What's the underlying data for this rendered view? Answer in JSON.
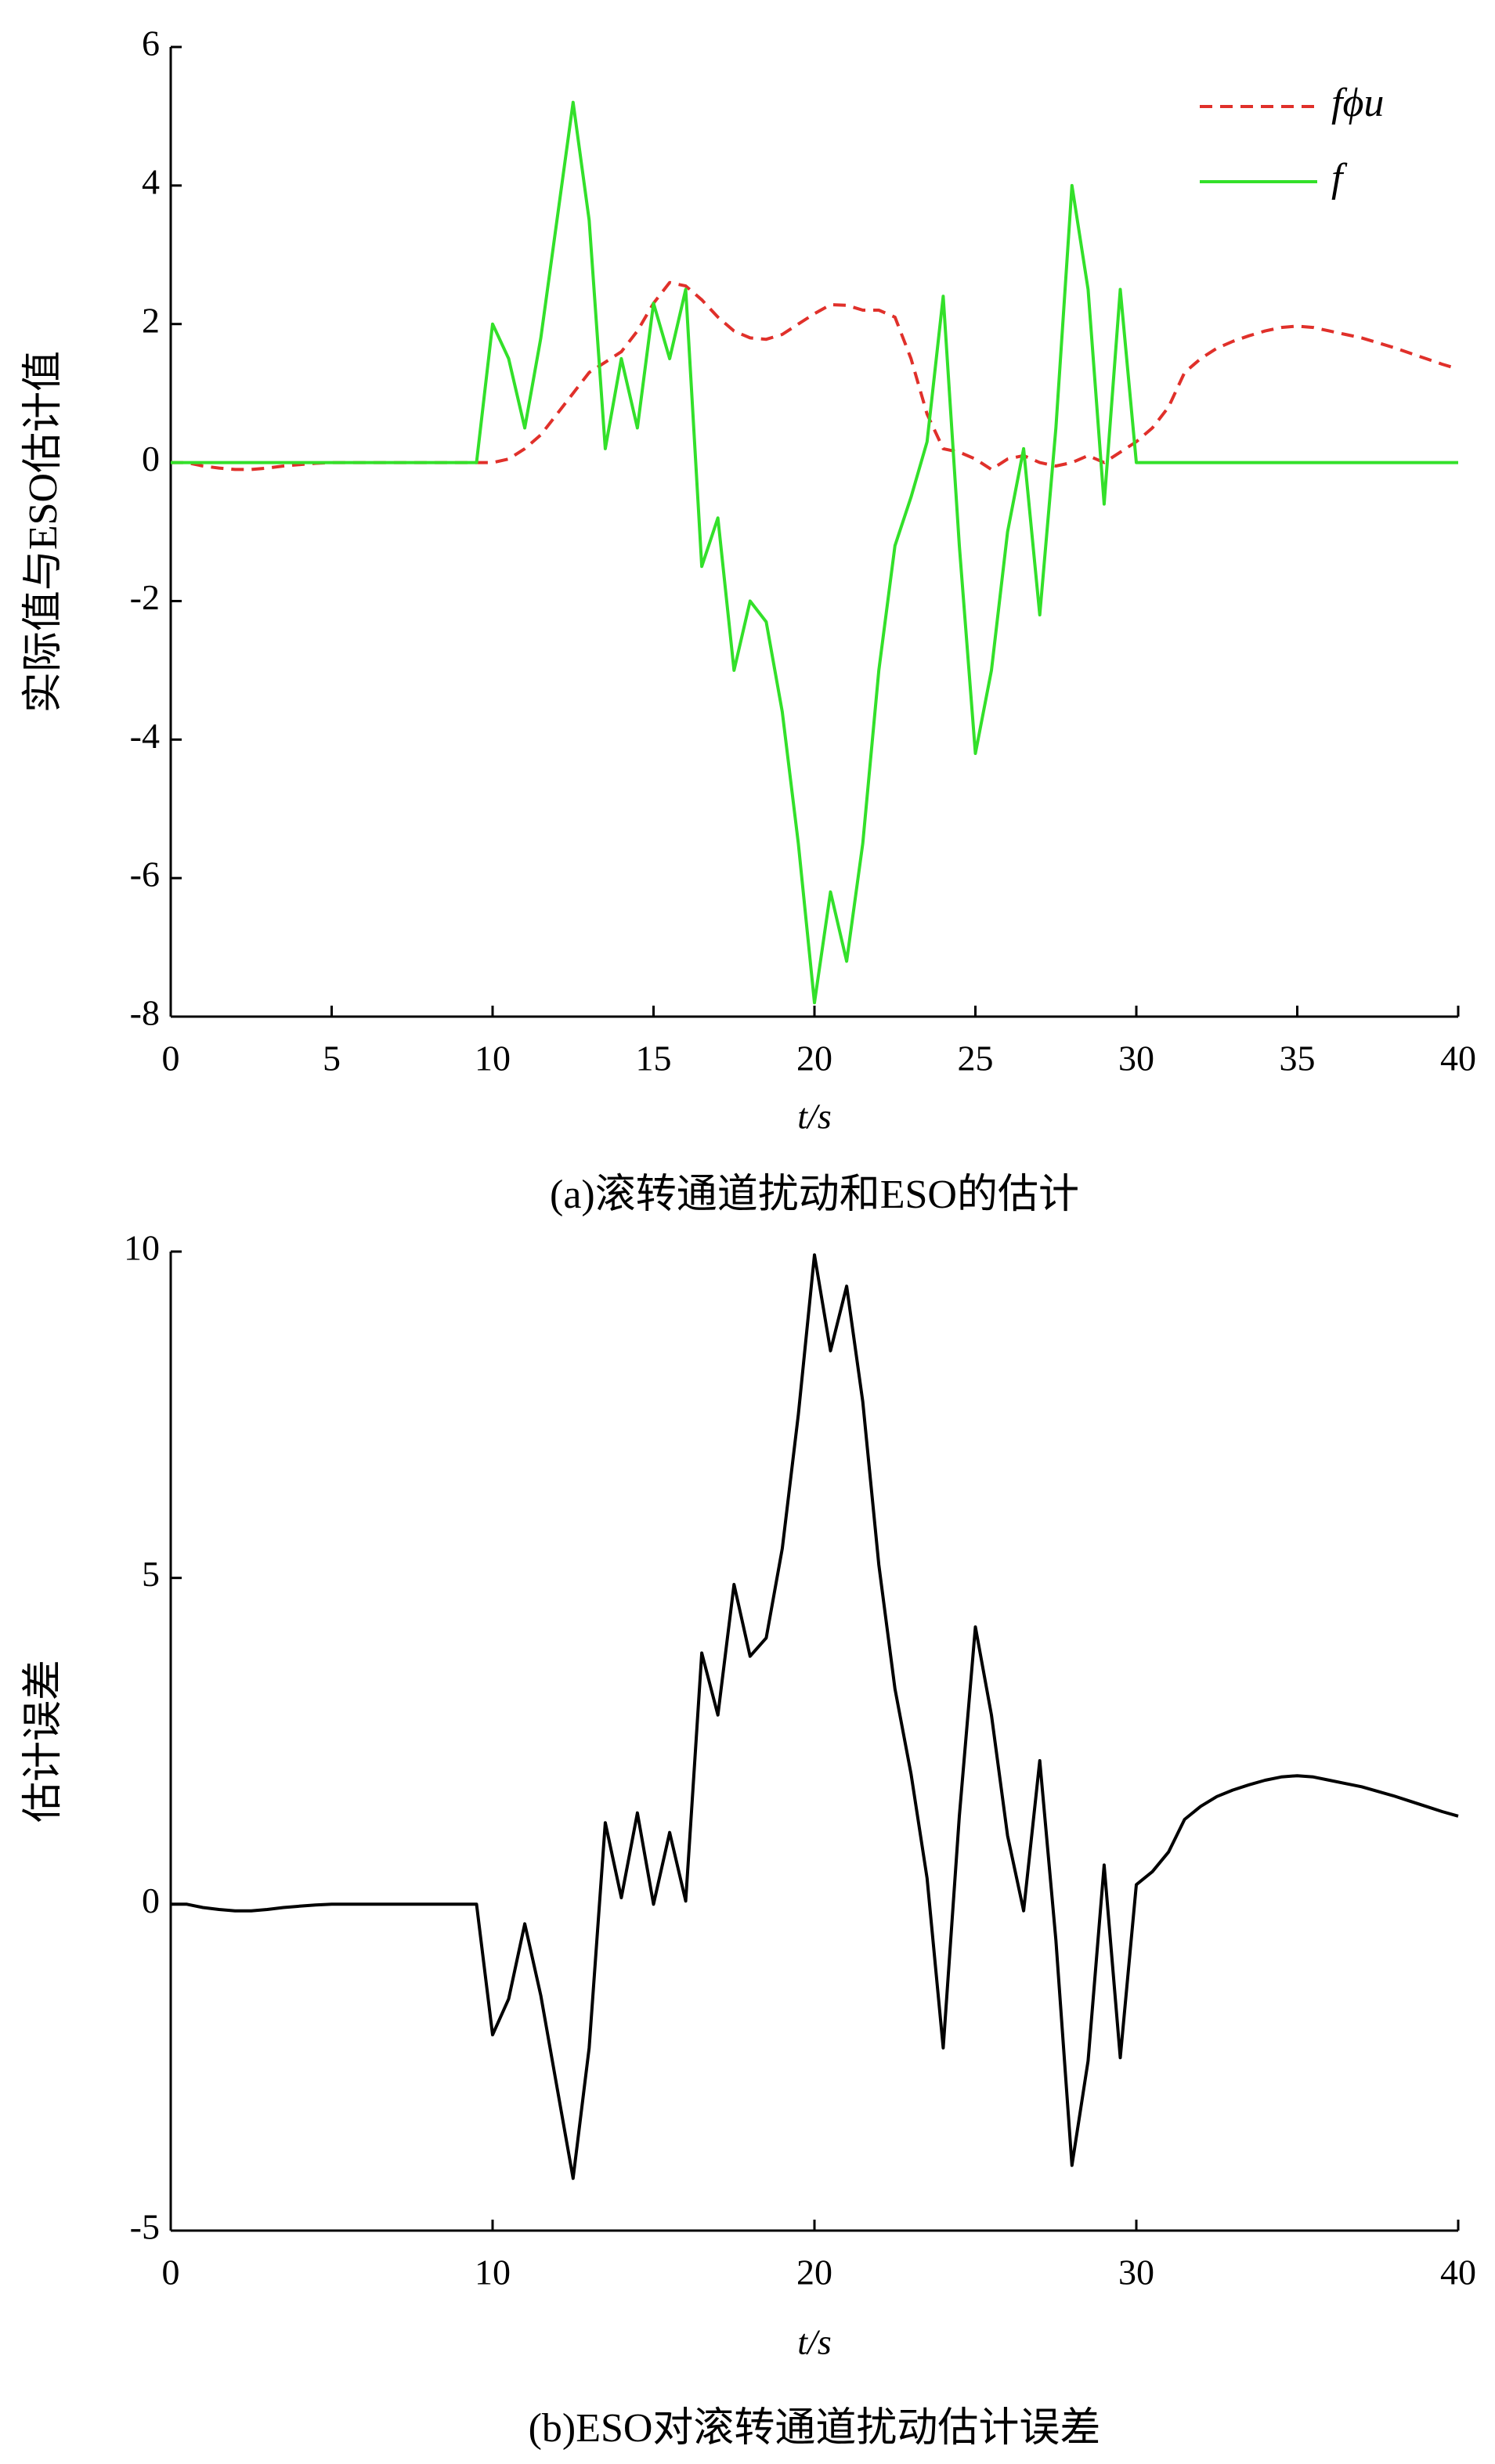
{
  "chart_data": [
    {
      "type": "line",
      "ylabel": "实际值与ESO估计值",
      "xlabel": "t/s",
      "caption": "(a)滚转通道扰动和ESO的估计",
      "xlim": [
        0,
        40
      ],
      "xticks": [
        0,
        5,
        10,
        15,
        20,
        25,
        30,
        35,
        40
      ],
      "ylim": [
        -8,
        6
      ],
      "yticks": [
        -8,
        -6,
        -4,
        -2,
        0,
        2,
        4,
        6
      ],
      "legend": "upper right",
      "x": [
        0,
        0.5,
        1,
        1.5,
        2,
        2.5,
        3,
        3.5,
        4,
        4.5,
        5,
        5.5,
        6,
        6.5,
        7,
        7.5,
        8,
        8.5,
        9,
        9.5,
        10,
        10.5,
        11,
        11.5,
        12,
        12.5,
        13,
        13.5,
        14,
        14.5,
        15,
        15.5,
        16,
        16.5,
        17,
        17.5,
        18,
        18.5,
        19,
        19.5,
        20,
        20.5,
        21,
        21.5,
        22,
        22.5,
        23,
        23.5,
        24,
        24.5,
        25,
        25.5,
        26,
        26.5,
        27,
        27.5,
        28,
        28.5,
        29,
        29.5,
        30,
        30.5,
        31,
        31.5,
        32,
        32.5,
        33,
        33.5,
        34,
        34.5,
        35,
        35.5,
        36,
        36.5,
        37,
        37.5,
        38,
        38.5,
        39,
        39.5,
        40
      ],
      "series": [
        {
          "name": "fϕu",
          "color": "#e0302a",
          "style": "dashed",
          "values": [
            0,
            0,
            -0.05,
            -0.08,
            -0.1,
            -0.1,
            -0.08,
            -0.05,
            -0.03,
            -0.01,
            0,
            0,
            0,
            0,
            0,
            0,
            0,
            0,
            0,
            0,
            0,
            0.05,
            0.2,
            0.4,
            0.7,
            1.0,
            1.3,
            1.45,
            1.6,
            1.9,
            2.3,
            2.6,
            2.55,
            2.35,
            2.1,
            1.9,
            1.8,
            1.78,
            1.85,
            2.0,
            2.15,
            2.28,
            2.27,
            2.2,
            2.2,
            2.1,
            1.5,
            0.7,
            0.2,
            0.15,
            0.05,
            -0.1,
            0.05,
            0.1,
            0,
            -0.05,
            0,
            0.1,
            0,
            0.15,
            0.3,
            0.5,
            0.8,
            1.3,
            1.5,
            1.65,
            1.75,
            1.83,
            1.9,
            1.95,
            1.97,
            1.95,
            1.9,
            1.85,
            1.8,
            1.73,
            1.66,
            1.58,
            1.5,
            1.42,
            1.35
          ]
        },
        {
          "name": "f",
          "color": "#33e02a",
          "style": "solid",
          "values": [
            0,
            0,
            0,
            0,
            0,
            0,
            0,
            0,
            0,
            0,
            0,
            0,
            0,
            0,
            0,
            0,
            0,
            0,
            0,
            0,
            2.0,
            1.5,
            0.5,
            1.8,
            3.5,
            5.2,
            3.5,
            0.2,
            1.5,
            0.5,
            2.3,
            1.5,
            2.5,
            -1.5,
            -0.8,
            -3.0,
            -2.0,
            -2.3,
            -3.6,
            -5.5,
            -7.8,
            -6.2,
            -7.2,
            -5.5,
            -3.0,
            -1.2,
            -0.5,
            0.3,
            2.4,
            -1.2,
            -4.2,
            -3.0,
            -1.0,
            0.2,
            -2.2,
            0.5,
            4.0,
            2.5,
            -0.6,
            2.5,
            0,
            0,
            0,
            0,
            0,
            0,
            0,
            0,
            0,
            0,
            0,
            0,
            0,
            0,
            0,
            0,
            0,
            0,
            0,
            0,
            0
          ]
        }
      ]
    },
    {
      "type": "line",
      "ylabel": "估计误差",
      "xlabel": "t/s",
      "caption": "(b)ESO对滚转通道扰动估计误差",
      "xlim": [
        0,
        40
      ],
      "xticks": [
        0,
        10,
        20,
        30,
        40
      ],
      "ylim": [
        -5,
        10
      ],
      "yticks": [
        -5,
        0,
        5,
        10
      ],
      "x": [
        0,
        0.5,
        1,
        1.5,
        2,
        2.5,
        3,
        3.5,
        4,
        4.5,
        5,
        5.5,
        6,
        6.5,
        7,
        7.5,
        8,
        8.5,
        9,
        9.5,
        10,
        10.5,
        11,
        11.5,
        12,
        12.5,
        13,
        13.5,
        14,
        14.5,
        15,
        15.5,
        16,
        16.5,
        17,
        17.5,
        18,
        18.5,
        19,
        19.5,
        20,
        20.5,
        21,
        21.5,
        22,
        22.5,
        23,
        23.5,
        24,
        24.5,
        25,
        25.5,
        26,
        26.5,
        27,
        27.5,
        28,
        28.5,
        29,
        29.5,
        30,
        30.5,
        31,
        31.5,
        32,
        32.5,
        33,
        33.5,
        34,
        34.5,
        35,
        35.5,
        36,
        36.5,
        37,
        37.5,
        38,
        38.5,
        39,
        39.5,
        40
      ],
      "series": [
        {
          "color": "#000000",
          "style": "solid",
          "values": [
            0,
            0,
            -0.05,
            -0.08,
            -0.1,
            -0.1,
            -0.08,
            -0.05,
            -0.03,
            -0.01,
            0,
            0,
            0,
            0,
            0,
            0,
            0,
            0,
            0,
            0,
            -2.0,
            -1.45,
            -0.3,
            -1.4,
            -2.8,
            -4.2,
            -2.2,
            1.25,
            0.1,
            1.4,
            0.0,
            1.1,
            0.05,
            3.85,
            2.9,
            4.9,
            3.8,
            4.08,
            5.45,
            7.5,
            9.95,
            8.48,
            9.47,
            7.7,
            5.2,
            3.3,
            2.0,
            0.4,
            -2.2,
            1.35,
            4.25,
            2.9,
            1.05,
            -0.1,
            2.2,
            -0.55,
            -4.0,
            -2.4,
            0.6,
            -2.35,
            0.3,
            0.5,
            0.8,
            1.3,
            1.5,
            1.65,
            1.75,
            1.83,
            1.9,
            1.95,
            1.97,
            1.95,
            1.9,
            1.85,
            1.8,
            1.73,
            1.66,
            1.58,
            1.5,
            1.42,
            1.35
          ]
        }
      ]
    }
  ]
}
